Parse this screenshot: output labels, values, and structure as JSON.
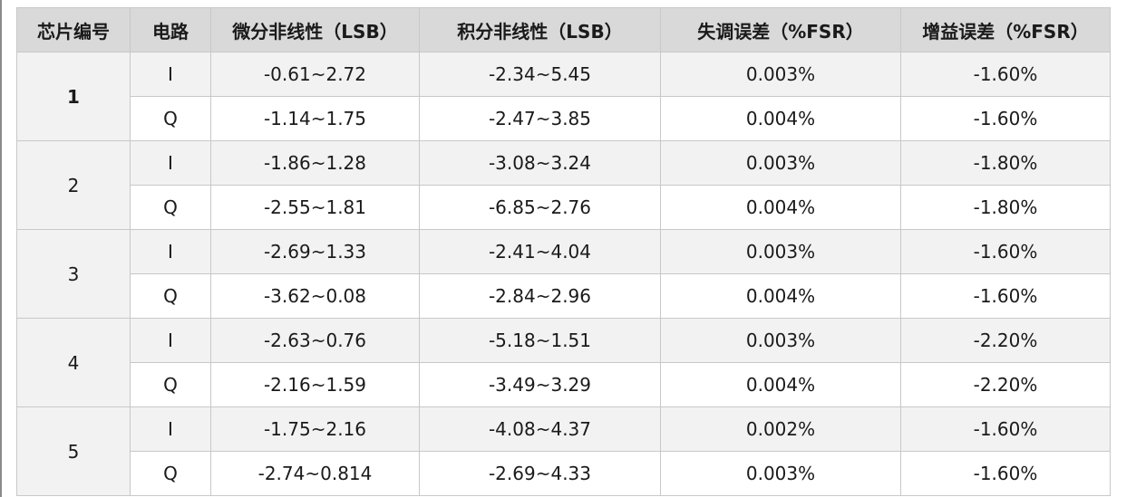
{
  "table": {
    "headers": [
      "芯片编号",
      "电路",
      "微分非线性（LSB）",
      "积分非线性（LSB）",
      "失调误差（%FSR）",
      "增益误差（%FSR）"
    ],
    "chips": [
      {
        "id": "1",
        "rows": [
          {
            "circuit": "I",
            "dnl": "-0.61~2.72",
            "inl": "-2.34~5.45",
            "offset": "0.003%",
            "gain": "-1.60%"
          },
          {
            "circuit": "Q",
            "dnl": "-1.14~1.75",
            "inl": "-2.47~3.85",
            "offset": "0.004%",
            "gain": "-1.60%"
          }
        ]
      },
      {
        "id": "2",
        "rows": [
          {
            "circuit": "I",
            "dnl": "-1.86~1.28",
            "inl": "-3.08~3.24",
            "offset": "0.003%",
            "gain": "-1.80%"
          },
          {
            "circuit": "Q",
            "dnl": "-2.55~1.81",
            "inl": "-6.85~2.76",
            "offset": "0.004%",
            "gain": "-1.80%"
          }
        ]
      },
      {
        "id": "3",
        "rows": [
          {
            "circuit": "I",
            "dnl": "-2.69~1.33",
            "inl": "-2.41~4.04",
            "offset": "0.003%",
            "gain": "-1.60%"
          },
          {
            "circuit": "Q",
            "dnl": "-3.62~0.08",
            "inl": "-2.84~2.96",
            "offset": "0.004%",
            "gain": "-1.60%"
          }
        ]
      },
      {
        "id": "4",
        "rows": [
          {
            "circuit": "I",
            "dnl": "-2.63~0.76",
            "inl": "-5.18~1.51",
            "offset": "0.003%",
            "gain": "-2.20%"
          },
          {
            "circuit": "Q",
            "dnl": "-2.16~1.59",
            "inl": "-3.49~3.29",
            "offset": "0.004%",
            "gain": "-2.20%"
          }
        ]
      },
      {
        "id": "5",
        "rows": [
          {
            "circuit": "I",
            "dnl": "-1.75~2.16",
            "inl": "-4.08~4.37",
            "offset": "0.002%",
            "gain": "-1.60%"
          },
          {
            "circuit": "Q",
            "dnl": "-2.74~0.814",
            "inl": "-2.69~4.33",
            "offset": "0.003%",
            "gain": "-1.60%"
          }
        ]
      }
    ]
  }
}
